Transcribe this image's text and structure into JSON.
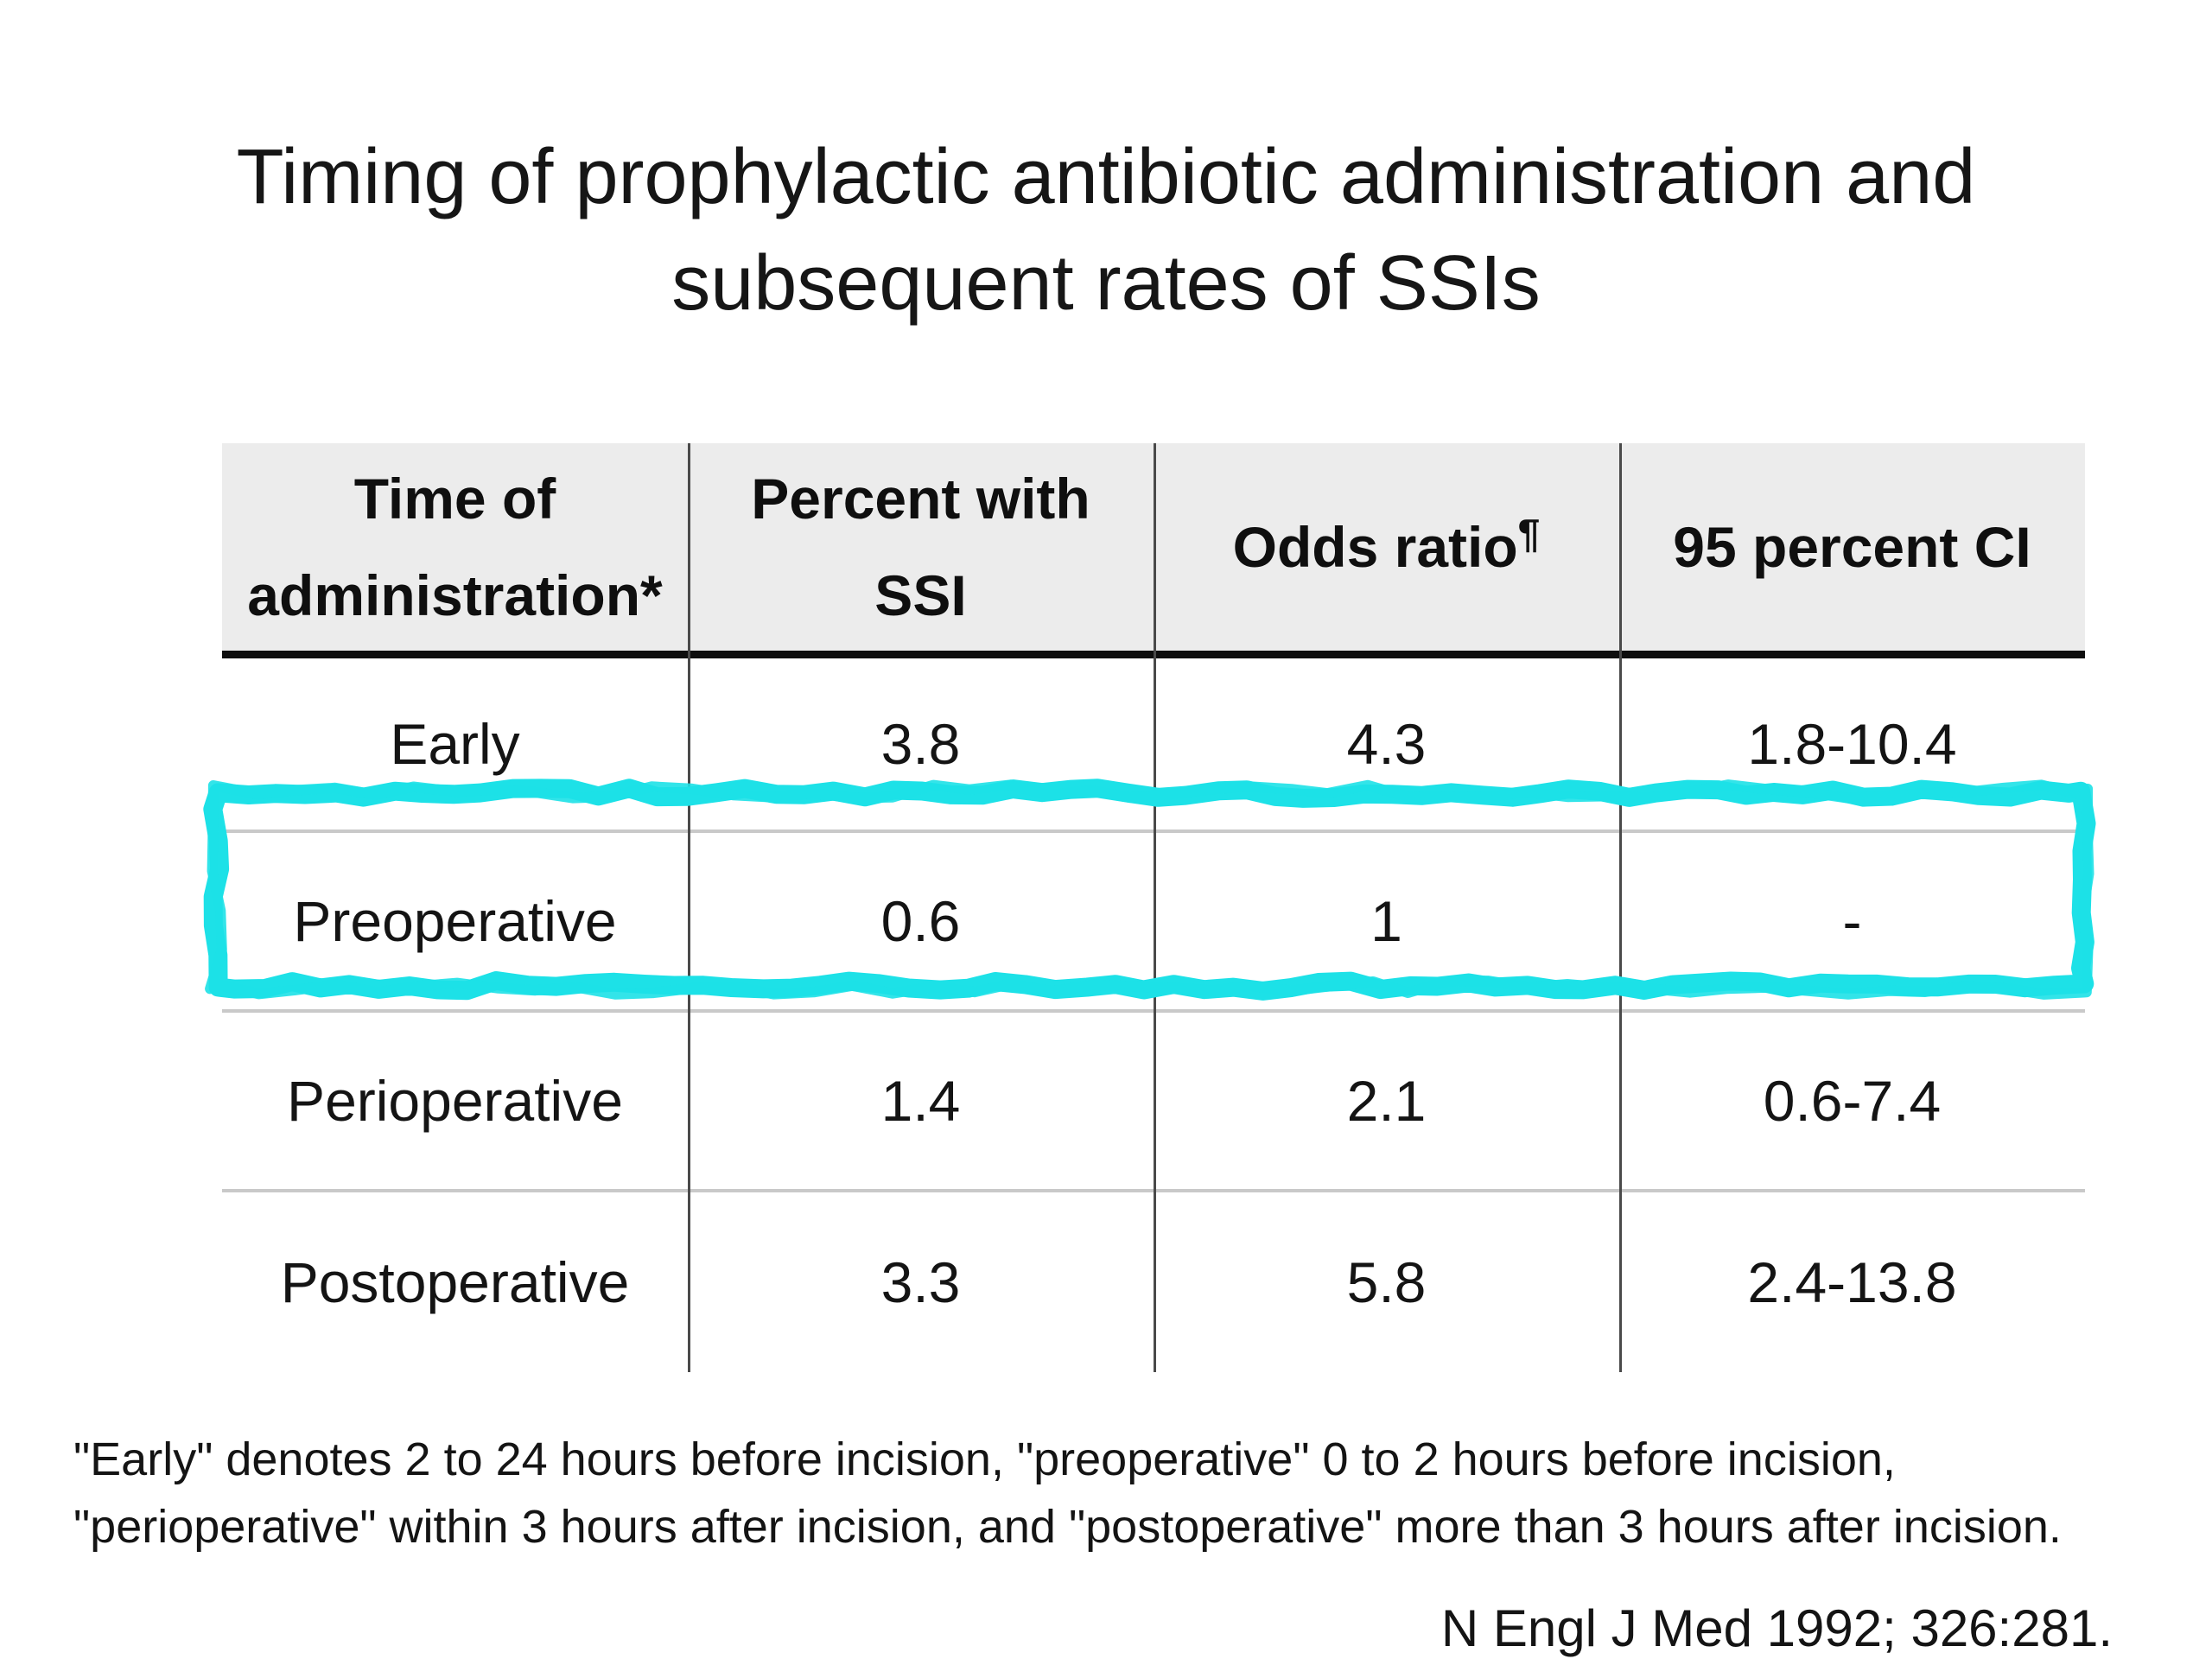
{
  "title": {
    "line1": "Timing of prophylactic antibiotic administration and",
    "line2": "subsequent rates of SSIs"
  },
  "table": {
    "header": [
      {
        "line1": "Time of",
        "line2": "administration*"
      },
      {
        "line1": "Percent with",
        "line2": "SSI"
      },
      {
        "line1": "Odds ratio",
        "sup": "¶",
        "line2": ""
      },
      {
        "line1": "95 percent CI",
        "line2": ""
      }
    ],
    "rows": [
      {
        "cells": [
          "Early",
          "3.8",
          "4.3",
          "1.8-10.4"
        ]
      },
      {
        "cells": [
          "Preoperative",
          "0.6",
          "1",
          "-"
        ]
      },
      {
        "cells": [
          "Perioperative",
          "1.4",
          "2.1",
          "0.6-7.4"
        ]
      },
      {
        "cells": [
          "Postoperative",
          "3.3",
          "5.8",
          "2.4-13.8"
        ]
      }
    ]
  },
  "highlight": {
    "target_row": "Preoperative",
    "color": "#1de1e7"
  },
  "footnote": {
    "line1": "\"Early\" denotes 2 to 24 hours before incision, \"preoperative\" 0 to 2 hours before incision,",
    "line2": "\"perioperative\" within 3 hours after incision, and \"postoperative\" more than 3 hours after incision."
  },
  "citation": "N Engl J Med 1992; 326:281.",
  "colors": {
    "header_background": "#ececec",
    "header_rule": "#0e0e0e",
    "column_divider": "#4a4a4a",
    "row_divider": "#c9c9c9",
    "text": "#141414"
  }
}
